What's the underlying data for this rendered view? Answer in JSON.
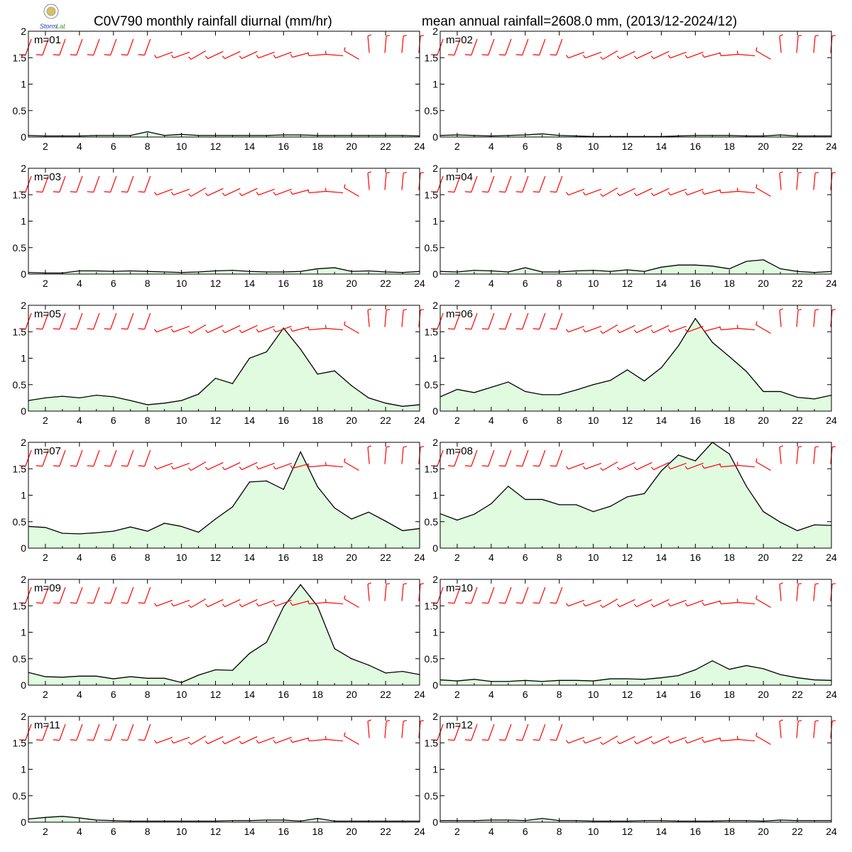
{
  "title_left": "C0V790 monthly rainfall diurnal (mm/hr)",
  "title_right": "mean annual rainfall=2608.0 mm, (2013/12-2024/12)",
  "logo_text": "Storm Lab",
  "colors": {
    "fill": "#e0fbe0",
    "line": "#000000",
    "wind": "#ff0000",
    "frame": "#000000"
  },
  "chart_data": [
    {
      "type": "area",
      "label": "m=01",
      "x": [
        1,
        2,
        3,
        4,
        5,
        6,
        7,
        8,
        9,
        10,
        11,
        12,
        13,
        14,
        15,
        16,
        17,
        18,
        19,
        20,
        21,
        22,
        23,
        24
      ],
      "ylim": [
        0,
        2
      ],
      "values": [
        0.03,
        0.02,
        0.02,
        0.02,
        0.03,
        0.03,
        0.03,
        0.1,
        0.03,
        0.05,
        0.03,
        0.03,
        0.03,
        0.03,
        0.03,
        0.04,
        0.04,
        0.03,
        0.03,
        0.03,
        0.03,
        0.03,
        0.03,
        0.02
      ]
    },
    {
      "type": "area",
      "label": "m=02",
      "x": [
        1,
        2,
        3,
        4,
        5,
        6,
        7,
        8,
        9,
        10,
        11,
        12,
        13,
        14,
        15,
        16,
        17,
        18,
        19,
        20,
        21,
        22,
        23,
        24
      ],
      "ylim": [
        0,
        2
      ],
      "values": [
        0.03,
        0.04,
        0.03,
        0.02,
        0.03,
        0.04,
        0.06,
        0.03,
        0.02,
        0.01,
        0.01,
        0.01,
        0.01,
        0.01,
        0.02,
        0.03,
        0.03,
        0.03,
        0.02,
        0.02,
        0.04,
        0.02,
        0.02,
        0.02
      ]
    },
    {
      "type": "area",
      "label": "m=03",
      "x": [
        1,
        2,
        3,
        4,
        5,
        6,
        7,
        8,
        9,
        10,
        11,
        12,
        13,
        14,
        15,
        16,
        17,
        18,
        19,
        20,
        21,
        22,
        23,
        24
      ],
      "ylim": [
        0,
        2
      ],
      "values": [
        0.03,
        0.02,
        0.02,
        0.06,
        0.06,
        0.05,
        0.06,
        0.05,
        0.04,
        0.03,
        0.04,
        0.06,
        0.07,
        0.05,
        0.04,
        0.04,
        0.05,
        0.1,
        0.12,
        0.05,
        0.06,
        0.04,
        0.03,
        0.05
      ]
    },
    {
      "type": "area",
      "label": "m=04",
      "x": [
        1,
        2,
        3,
        4,
        5,
        6,
        7,
        8,
        9,
        10,
        11,
        12,
        13,
        14,
        15,
        16,
        17,
        18,
        19,
        20,
        21,
        22,
        23,
        24
      ],
      "ylim": [
        0,
        2
      ],
      "values": [
        0.05,
        0.04,
        0.07,
        0.06,
        0.04,
        0.12,
        0.04,
        0.04,
        0.06,
        0.07,
        0.05,
        0.08,
        0.05,
        0.13,
        0.17,
        0.17,
        0.15,
        0.1,
        0.24,
        0.27,
        0.1,
        0.05,
        0.03,
        0.05
      ]
    },
    {
      "type": "area",
      "label": "m=05",
      "x": [
        1,
        2,
        3,
        4,
        5,
        6,
        7,
        8,
        9,
        10,
        11,
        12,
        13,
        14,
        15,
        16,
        17,
        18,
        19,
        20,
        21,
        22,
        23,
        24
      ],
      "ylim": [
        0,
        2
      ],
      "values": [
        0.2,
        0.25,
        0.28,
        0.25,
        0.3,
        0.27,
        0.2,
        0.12,
        0.15,
        0.2,
        0.32,
        0.62,
        0.52,
        1.0,
        1.12,
        1.57,
        1.17,
        0.7,
        0.76,
        0.48,
        0.25,
        0.15,
        0.09,
        0.12
      ]
    },
    {
      "type": "area",
      "label": "m=06",
      "x": [
        1,
        2,
        3,
        4,
        5,
        6,
        7,
        8,
        9,
        10,
        11,
        12,
        13,
        14,
        15,
        16,
        17,
        18,
        19,
        20,
        21,
        22,
        23,
        24
      ],
      "ylim": [
        0,
        2
      ],
      "values": [
        0.27,
        0.41,
        0.35,
        0.45,
        0.55,
        0.37,
        0.31,
        0.31,
        0.4,
        0.5,
        0.58,
        0.78,
        0.57,
        0.82,
        1.23,
        1.75,
        1.3,
        1.03,
        0.75,
        0.37,
        0.37,
        0.26,
        0.23,
        0.3
      ]
    },
    {
      "type": "area",
      "label": "m=07",
      "x": [
        1,
        2,
        3,
        4,
        5,
        6,
        7,
        8,
        9,
        10,
        11,
        12,
        13,
        14,
        15,
        16,
        17,
        18,
        19,
        20,
        21,
        22,
        23,
        24
      ],
      "ylim": [
        0,
        2
      ],
      "values": [
        0.41,
        0.39,
        0.28,
        0.27,
        0.29,
        0.32,
        0.4,
        0.32,
        0.47,
        0.41,
        0.3,
        0.55,
        0.78,
        1.25,
        1.27,
        1.11,
        1.82,
        1.16,
        0.76,
        0.55,
        0.68,
        0.51,
        0.33,
        0.37
      ]
    },
    {
      "type": "area",
      "label": "m=08",
      "x": [
        1,
        2,
        3,
        4,
        5,
        6,
        7,
        8,
        9,
        10,
        11,
        12,
        13,
        14,
        15,
        16,
        17,
        18,
        19,
        20,
        21,
        22,
        23,
        24
      ],
      "ylim": [
        0,
        2
      ],
      "values": [
        0.65,
        0.53,
        0.64,
        0.84,
        1.17,
        0.92,
        0.92,
        0.82,
        0.82,
        0.69,
        0.79,
        0.97,
        1.03,
        1.46,
        1.76,
        1.65,
        2.03,
        1.78,
        1.17,
        0.69,
        0.49,
        0.33,
        0.44,
        0.43
      ]
    },
    {
      "type": "area",
      "label": "m=09",
      "x": [
        1,
        2,
        3,
        4,
        5,
        6,
        7,
        8,
        9,
        10,
        11,
        12,
        13,
        14,
        15,
        16,
        17,
        18,
        19,
        20,
        21,
        22,
        23,
        24
      ],
      "ylim": [
        0,
        2
      ],
      "values": [
        0.24,
        0.16,
        0.15,
        0.17,
        0.17,
        0.12,
        0.16,
        0.13,
        0.13,
        0.05,
        0.19,
        0.29,
        0.28,
        0.6,
        0.81,
        1.48,
        1.9,
        1.49,
        0.69,
        0.5,
        0.38,
        0.23,
        0.26,
        0.2
      ]
    },
    {
      "type": "area",
      "label": "m=10",
      "x": [
        1,
        2,
        3,
        4,
        5,
        6,
        7,
        8,
        9,
        10,
        11,
        12,
        13,
        14,
        15,
        16,
        17,
        18,
        19,
        20,
        21,
        22,
        23,
        24
      ],
      "ylim": [
        0,
        2
      ],
      "values": [
        0.1,
        0.08,
        0.11,
        0.07,
        0.07,
        0.09,
        0.07,
        0.09,
        0.09,
        0.08,
        0.12,
        0.12,
        0.11,
        0.14,
        0.18,
        0.29,
        0.46,
        0.3,
        0.37,
        0.31,
        0.2,
        0.14,
        0.1,
        0.09
      ]
    },
    {
      "type": "area",
      "label": "m=11",
      "x": [
        1,
        2,
        3,
        4,
        5,
        6,
        7,
        8,
        9,
        10,
        11,
        12,
        13,
        14,
        15,
        16,
        17,
        18,
        19,
        20,
        21,
        22,
        23,
        24
      ],
      "ylim": [
        0,
        2
      ],
      "values": [
        0.06,
        0.09,
        0.11,
        0.08,
        0.04,
        0.03,
        0.02,
        0.02,
        0.02,
        0.02,
        0.02,
        0.02,
        0.03,
        0.03,
        0.04,
        0.04,
        0.02,
        0.07,
        0.02,
        0.02,
        0.02,
        0.02,
        0.02,
        0.02
      ]
    },
    {
      "type": "area",
      "label": "m=12",
      "x": [
        1,
        2,
        3,
        4,
        5,
        6,
        7,
        8,
        9,
        10,
        11,
        12,
        13,
        14,
        15,
        16,
        17,
        18,
        19,
        20,
        21,
        22,
        23,
        24
      ],
      "ylim": [
        0,
        2
      ],
      "values": [
        0.03,
        0.03,
        0.03,
        0.04,
        0.04,
        0.03,
        0.07,
        0.03,
        0.03,
        0.02,
        0.02,
        0.02,
        0.03,
        0.03,
        0.02,
        0.02,
        0.02,
        0.03,
        0.03,
        0.02,
        0.04,
        0.03,
        0.03,
        0.03
      ]
    }
  ],
  "axes": {
    "xticks": [
      2,
      4,
      6,
      8,
      10,
      12,
      14,
      16,
      18,
      20,
      22,
      24
    ],
    "yticks": [
      0,
      0.5,
      1,
      1.5,
      2
    ],
    "yticklabels": [
      "0",
      "0.5",
      "1",
      "1.5",
      "2"
    ]
  },
  "wind_barbs": {
    "pattern_west": [
      {
        "dir_deg": 200,
        "speed": 10
      },
      {
        "dir_deg": 200,
        "speed": 10
      },
      {
        "dir_deg": 200,
        "speed": 10
      },
      {
        "dir_deg": 200,
        "speed": 10
      },
      {
        "dir_deg": 200,
        "speed": 10
      },
      {
        "dir_deg": 200,
        "speed": 10
      },
      {
        "dir_deg": 200,
        "speed": 10
      },
      {
        "dir_deg": 200,
        "speed": 10
      },
      {
        "dir_deg": 250,
        "speed": 5
      },
      {
        "dir_deg": 250,
        "speed": 5
      },
      {
        "dir_deg": 240,
        "speed": 5
      },
      {
        "dir_deg": 245,
        "speed": 5
      },
      {
        "dir_deg": 245,
        "speed": 5
      },
      {
        "dir_deg": 245,
        "speed": 5
      },
      {
        "dir_deg": 250,
        "speed": 5
      },
      {
        "dir_deg": 250,
        "speed": 5
      },
      {
        "dir_deg": 255,
        "speed": 5
      },
      {
        "dir_deg": 265,
        "speed": 5
      },
      {
        "dir_deg": 275,
        "speed": 5
      },
      {
        "dir_deg": 300,
        "speed": 5
      },
      {
        "dir_deg": 355,
        "speed": 5
      },
      {
        "dir_deg": 5,
        "speed": 5
      },
      {
        "dir_deg": 5,
        "speed": 5
      },
      {
        "dir_deg": 5,
        "speed": 5
      }
    ]
  }
}
